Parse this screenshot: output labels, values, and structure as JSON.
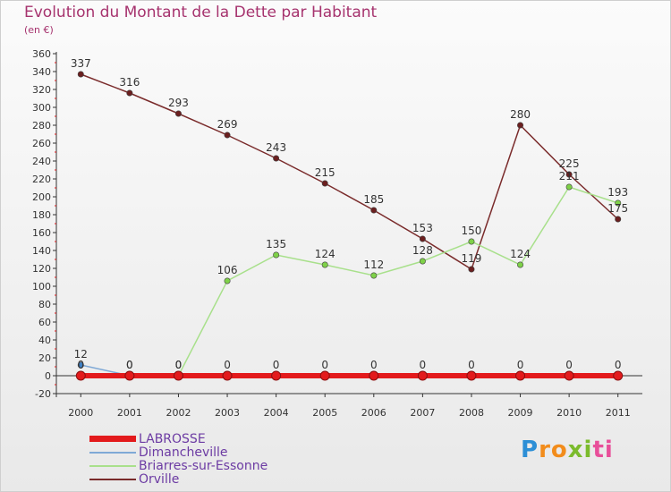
{
  "header": {
    "title": "Evolution du Montant de la Dette par Habitant",
    "subtitle": "(en €)"
  },
  "logo": {
    "text": "Proxiti",
    "color_p": "#2d8fd6",
    "color_r": "#f28c1b",
    "color_i": "#7bbb2c",
    "color_t": "#e84f9a"
  },
  "chart_data": {
    "type": "line",
    "title": "Evolution du Montant de la Dette par Habitant",
    "subtitle": "(en €)",
    "xlabel": "",
    "ylabel": "",
    "x": [
      "2000",
      "2001",
      "2002",
      "2003",
      "2004",
      "2005",
      "2006",
      "2007",
      "2008",
      "2009",
      "2010",
      "2011"
    ],
    "ylim": [
      -20,
      360
    ],
    "yticks": [
      -20,
      0,
      20,
      40,
      60,
      80,
      100,
      120,
      140,
      160,
      180,
      200,
      220,
      240,
      260,
      280,
      300,
      320,
      340,
      360
    ],
    "grid": false,
    "legend_position": "bottom-left",
    "series": [
      {
        "name": "LABROSSE",
        "color": "#e31a1c",
        "marker": "#e31a1c",
        "values": [
          0,
          0,
          0,
          0,
          0,
          0,
          0,
          0,
          0,
          0,
          0,
          0
        ],
        "labels": [
          "",
          "",
          "",
          "",
          "",
          "",
          "",
          "",
          "",
          "",
          "",
          ""
        ]
      },
      {
        "name": "Dimancheville",
        "color": "#7fa9d6",
        "marker": "#3d7fc4",
        "values": [
          12,
          0,
          0,
          0,
          0,
          0,
          0,
          0,
          0,
          0,
          0,
          0
        ],
        "labels": [
          "12",
          "0",
          "0",
          "0",
          "0",
          "0",
          "0",
          "0",
          "0",
          "0",
          "0",
          "0"
        ]
      },
      {
        "name": "Briarres-sur-Essonne",
        "color": "#a8e08b",
        "marker": "#7ed148",
        "values": [
          0,
          0,
          0,
          106,
          135,
          124,
          112,
          128,
          150,
          124,
          211,
          193
        ],
        "labels": [
          "0",
          "0",
          "0",
          "106",
          "135",
          "124",
          "112",
          "128",
          "150",
          "124",
          "211",
          "193"
        ]
      },
      {
        "name": "Orville",
        "color": "#7a2b2b",
        "marker": "#6b1f1f",
        "values": [
          337,
          316,
          293,
          269,
          243,
          215,
          185,
          153,
          119,
          280,
          225,
          175
        ],
        "labels": [
          "337",
          "316",
          "293",
          "269",
          "243",
          "215",
          "185",
          "153",
          "119",
          "280",
          "225",
          "175"
        ]
      }
    ]
  }
}
